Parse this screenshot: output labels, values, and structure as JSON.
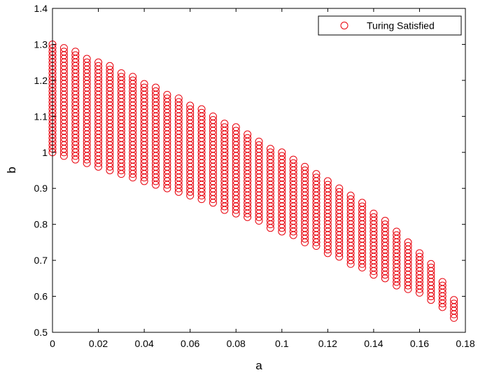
{
  "chart_data": {
    "type": "scatter",
    "title": "",
    "xlabel": "a",
    "ylabel": "b",
    "xlim": [
      0,
      0.18
    ],
    "ylim": [
      0.5,
      1.4
    ],
    "xticks": [
      "0",
      "0.02",
      "0.04",
      "0.06",
      "0.08",
      "0.1",
      "0.12",
      "0.14",
      "0.16",
      "0.18"
    ],
    "yticks": [
      "0.5",
      "0.6",
      "0.7",
      "0.8",
      "0.9",
      "1",
      "1.1",
      "1.2",
      "1.3",
      "1.4"
    ],
    "grid": false,
    "legend": {
      "position": "top-right",
      "entries": [
        "Turing Satisfied"
      ]
    },
    "marker": "circle",
    "color": "#e8000b",
    "series": [
      {
        "name": "Turing Satisfied",
        "sampling_step_b": 0.01,
        "columns": [
          {
            "a": 0.0,
            "b_min": 1.0,
            "b_max": 1.3
          },
          {
            "a": 0.005,
            "b_min": 0.99,
            "b_max": 1.29
          },
          {
            "a": 0.01,
            "b_min": 0.98,
            "b_max": 1.28
          },
          {
            "a": 0.015,
            "b_min": 0.97,
            "b_max": 1.26
          },
          {
            "a": 0.02,
            "b_min": 0.96,
            "b_max": 1.25
          },
          {
            "a": 0.025,
            "b_min": 0.95,
            "b_max": 1.24
          },
          {
            "a": 0.03,
            "b_min": 0.94,
            "b_max": 1.22
          },
          {
            "a": 0.035,
            "b_min": 0.93,
            "b_max": 1.21
          },
          {
            "a": 0.04,
            "b_min": 0.92,
            "b_max": 1.19
          },
          {
            "a": 0.045,
            "b_min": 0.91,
            "b_max": 1.18
          },
          {
            "a": 0.05,
            "b_min": 0.9,
            "b_max": 1.16
          },
          {
            "a": 0.055,
            "b_min": 0.89,
            "b_max": 1.15
          },
          {
            "a": 0.06,
            "b_min": 0.88,
            "b_max": 1.13
          },
          {
            "a": 0.065,
            "b_min": 0.87,
            "b_max": 1.12
          },
          {
            "a": 0.07,
            "b_min": 0.86,
            "b_max": 1.1
          },
          {
            "a": 0.075,
            "b_min": 0.84,
            "b_max": 1.08
          },
          {
            "a": 0.08,
            "b_min": 0.83,
            "b_max": 1.07
          },
          {
            "a": 0.085,
            "b_min": 0.82,
            "b_max": 1.05
          },
          {
            "a": 0.09,
            "b_min": 0.81,
            "b_max": 1.03
          },
          {
            "a": 0.095,
            "b_min": 0.79,
            "b_max": 1.01
          },
          {
            "a": 0.1,
            "b_min": 0.78,
            "b_max": 1.0
          },
          {
            "a": 0.105,
            "b_min": 0.77,
            "b_max": 0.98
          },
          {
            "a": 0.11,
            "b_min": 0.75,
            "b_max": 0.96
          },
          {
            "a": 0.115,
            "b_min": 0.74,
            "b_max": 0.94
          },
          {
            "a": 0.12,
            "b_min": 0.72,
            "b_max": 0.92
          },
          {
            "a": 0.125,
            "b_min": 0.71,
            "b_max": 0.9
          },
          {
            "a": 0.13,
            "b_min": 0.69,
            "b_max": 0.88
          },
          {
            "a": 0.135,
            "b_min": 0.68,
            "b_max": 0.86
          },
          {
            "a": 0.14,
            "b_min": 0.66,
            "b_max": 0.83
          },
          {
            "a": 0.145,
            "b_min": 0.65,
            "b_max": 0.81
          },
          {
            "a": 0.15,
            "b_min": 0.63,
            "b_max": 0.78
          },
          {
            "a": 0.155,
            "b_min": 0.62,
            "b_max": 0.75
          },
          {
            "a": 0.16,
            "b_min": 0.61,
            "b_max": 0.72
          },
          {
            "a": 0.165,
            "b_min": 0.59,
            "b_max": 0.69
          },
          {
            "a": 0.17,
            "b_min": 0.57,
            "b_max": 0.64
          },
          {
            "a": 0.175,
            "b_min": 0.54,
            "b_max": 0.59
          }
        ]
      }
    ]
  }
}
